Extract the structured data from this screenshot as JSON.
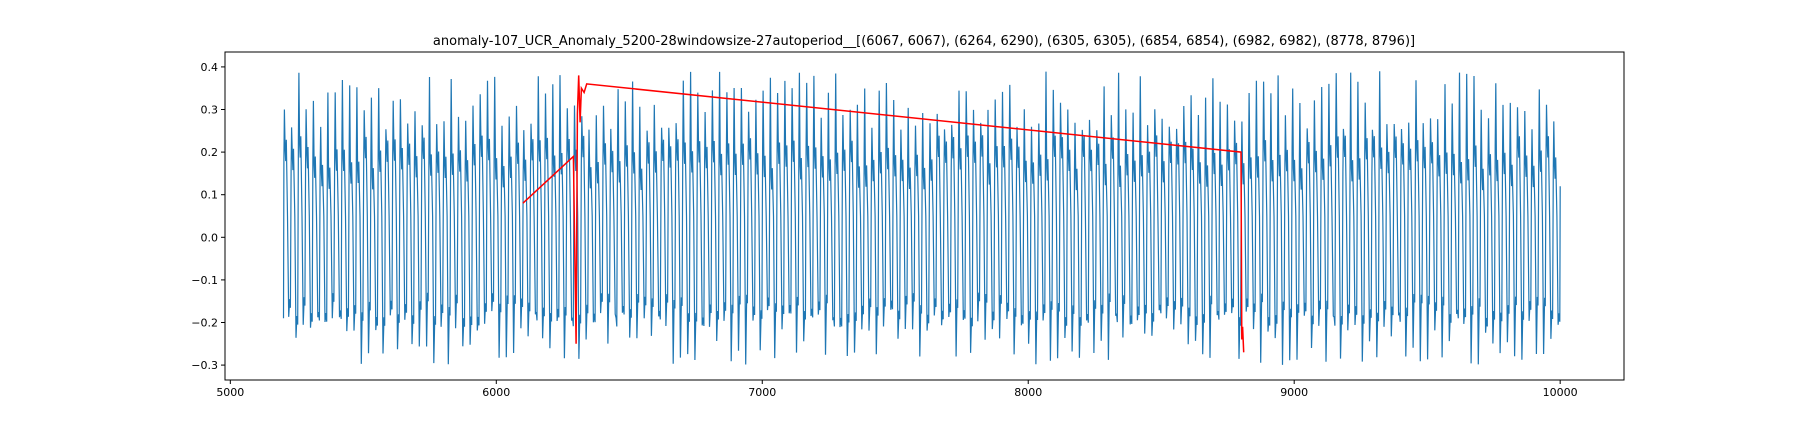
{
  "chart_data": {
    "type": "line",
    "title": "anomaly-107_UCR_Anomaly_5200-28windowsize-27autoperiod__[(6067, 6067), (6264, 6290), (6305, 6305), (6854, 6854), (6982, 6982), (8778, 8796)]",
    "xlabel": "",
    "ylabel": "",
    "xlim": [
      4980,
      10240
    ],
    "ylim": [
      -0.335,
      0.435
    ],
    "x_ticks": [
      5000,
      6000,
      7000,
      8000,
      9000,
      10000
    ],
    "x_tick_labels": [
      "5000",
      "6000",
      "7000",
      "8000",
      "9000",
      "10000"
    ],
    "y_ticks": [
      -0.3,
      -0.2,
      -0.1,
      0.0,
      0.1,
      0.2,
      0.3,
      0.4
    ],
    "y_tick_labels": [
      "−0.3",
      "−0.2",
      "−0.1",
      "0.0",
      "0.1",
      "0.2",
      "0.3",
      "0.4"
    ],
    "grid": false,
    "legend": "none",
    "series": [
      {
        "color": "#1f77b4",
        "style": "periodic",
        "x_start": 5200,
        "x_end": 10000,
        "cycle_count": 176,
        "peak_min": 0.25,
        "peak_max": 0.39,
        "trough_min": -0.3,
        "trough_max": -0.17,
        "secondary_level": 0.18
      },
      {
        "color": "#ff0000",
        "style": "polyline",
        "x": [
          6100,
          6290,
          6300,
          6305,
          6310,
          6315,
          6320,
          6330,
          6340,
          8800,
          8803,
          8806,
          8810
        ],
        "y": [
          0.08,
          0.19,
          -0.25,
          0.29,
          0.38,
          0.27,
          0.35,
          0.34,
          0.36,
          0.2,
          -0.24,
          -0.21,
          -0.27
        ]
      }
    ]
  }
}
